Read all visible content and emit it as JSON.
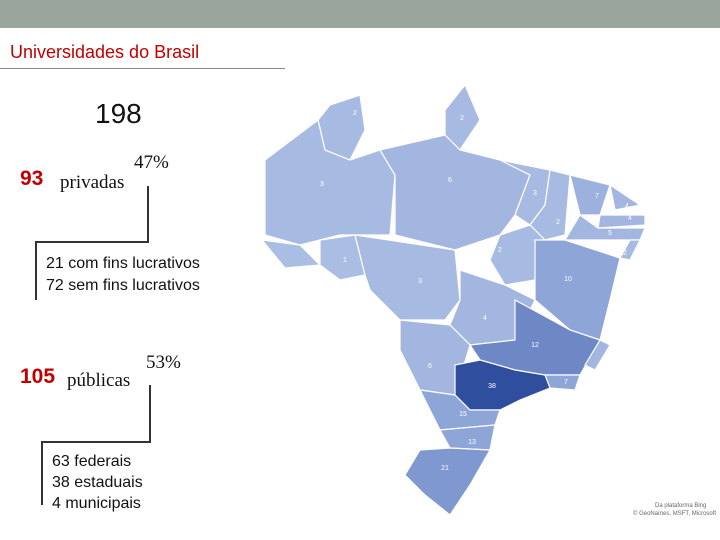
{
  "header": {
    "title": "Universidades do Brasil"
  },
  "total": "198",
  "private": {
    "count": "93",
    "label": "privadas",
    "share": "47%",
    "breakdown": [
      "21 com fins lucrativos",
      "72 sem fins lucrativos"
    ]
  },
  "public": {
    "count": "105",
    "label": "públicas",
    "share": "53%",
    "breakdown": [
      "63 federais",
      "38 estaduais",
      "4 municipais"
    ]
  },
  "map": {
    "labels": [
      "2",
      "2",
      "3",
      "6",
      "3",
      "7",
      "4",
      "4",
      "5",
      "2",
      "2",
      "2",
      "1",
      "1",
      "3",
      "10",
      "4",
      "12",
      "6",
      "38",
      "7",
      "15",
      "13",
      "21"
    ],
    "credit": [
      "Da plataforma Bing",
      "© GeoNames, MSFT, Microsoft"
    ]
  }
}
